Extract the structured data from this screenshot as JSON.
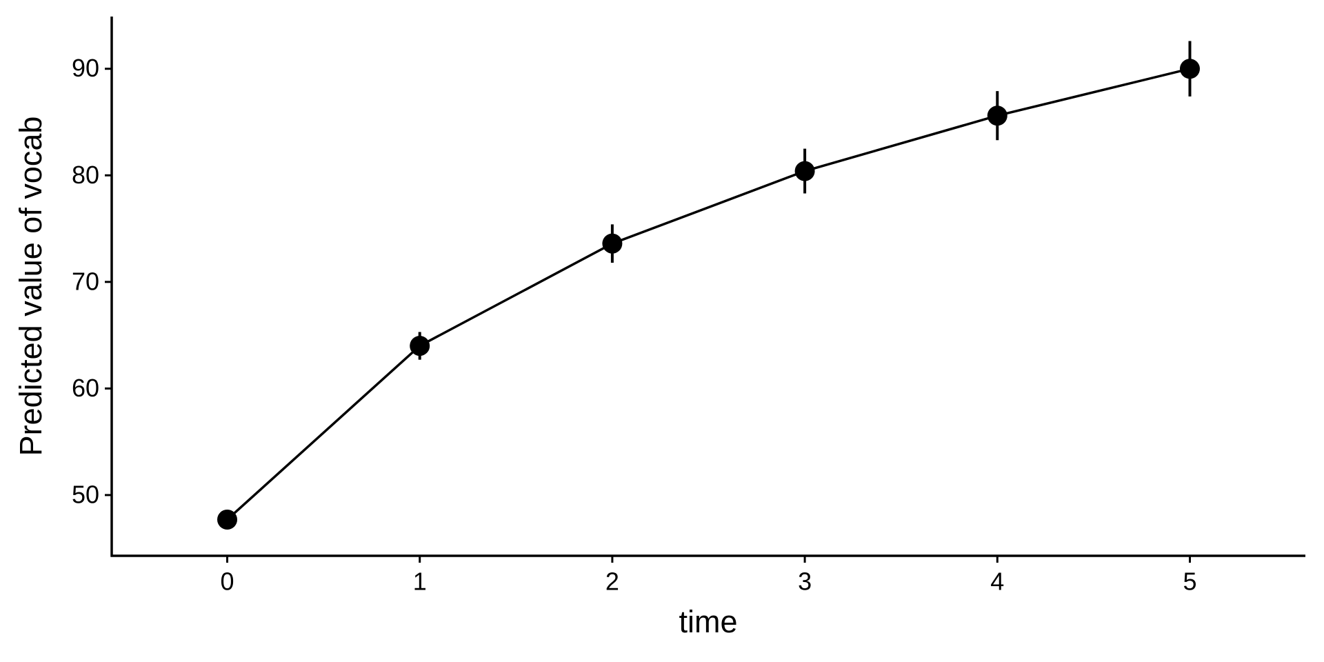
{
  "chart_data": {
    "type": "line",
    "x_label": "time",
    "y_label": "Predicted value of vocab",
    "x": [
      0,
      1,
      2,
      3,
      4,
      5
    ],
    "series": [
      {
        "color": "#000000",
        "values": [
          47.7,
          64.0,
          73.6,
          80.4,
          85.6,
          90.0
        ],
        "errors": [
          0.6,
          1.3,
          1.8,
          2.1,
          2.3,
          2.6
        ]
      }
    ],
    "xlim": [
      -0.6,
      5.6
    ],
    "xticks": [
      0,
      1,
      2,
      3,
      4,
      5
    ],
    "ylim": [
      44.3,
      94.9
    ],
    "yticks": [
      50,
      60,
      70,
      80,
      90
    ],
    "grid": false
  }
}
